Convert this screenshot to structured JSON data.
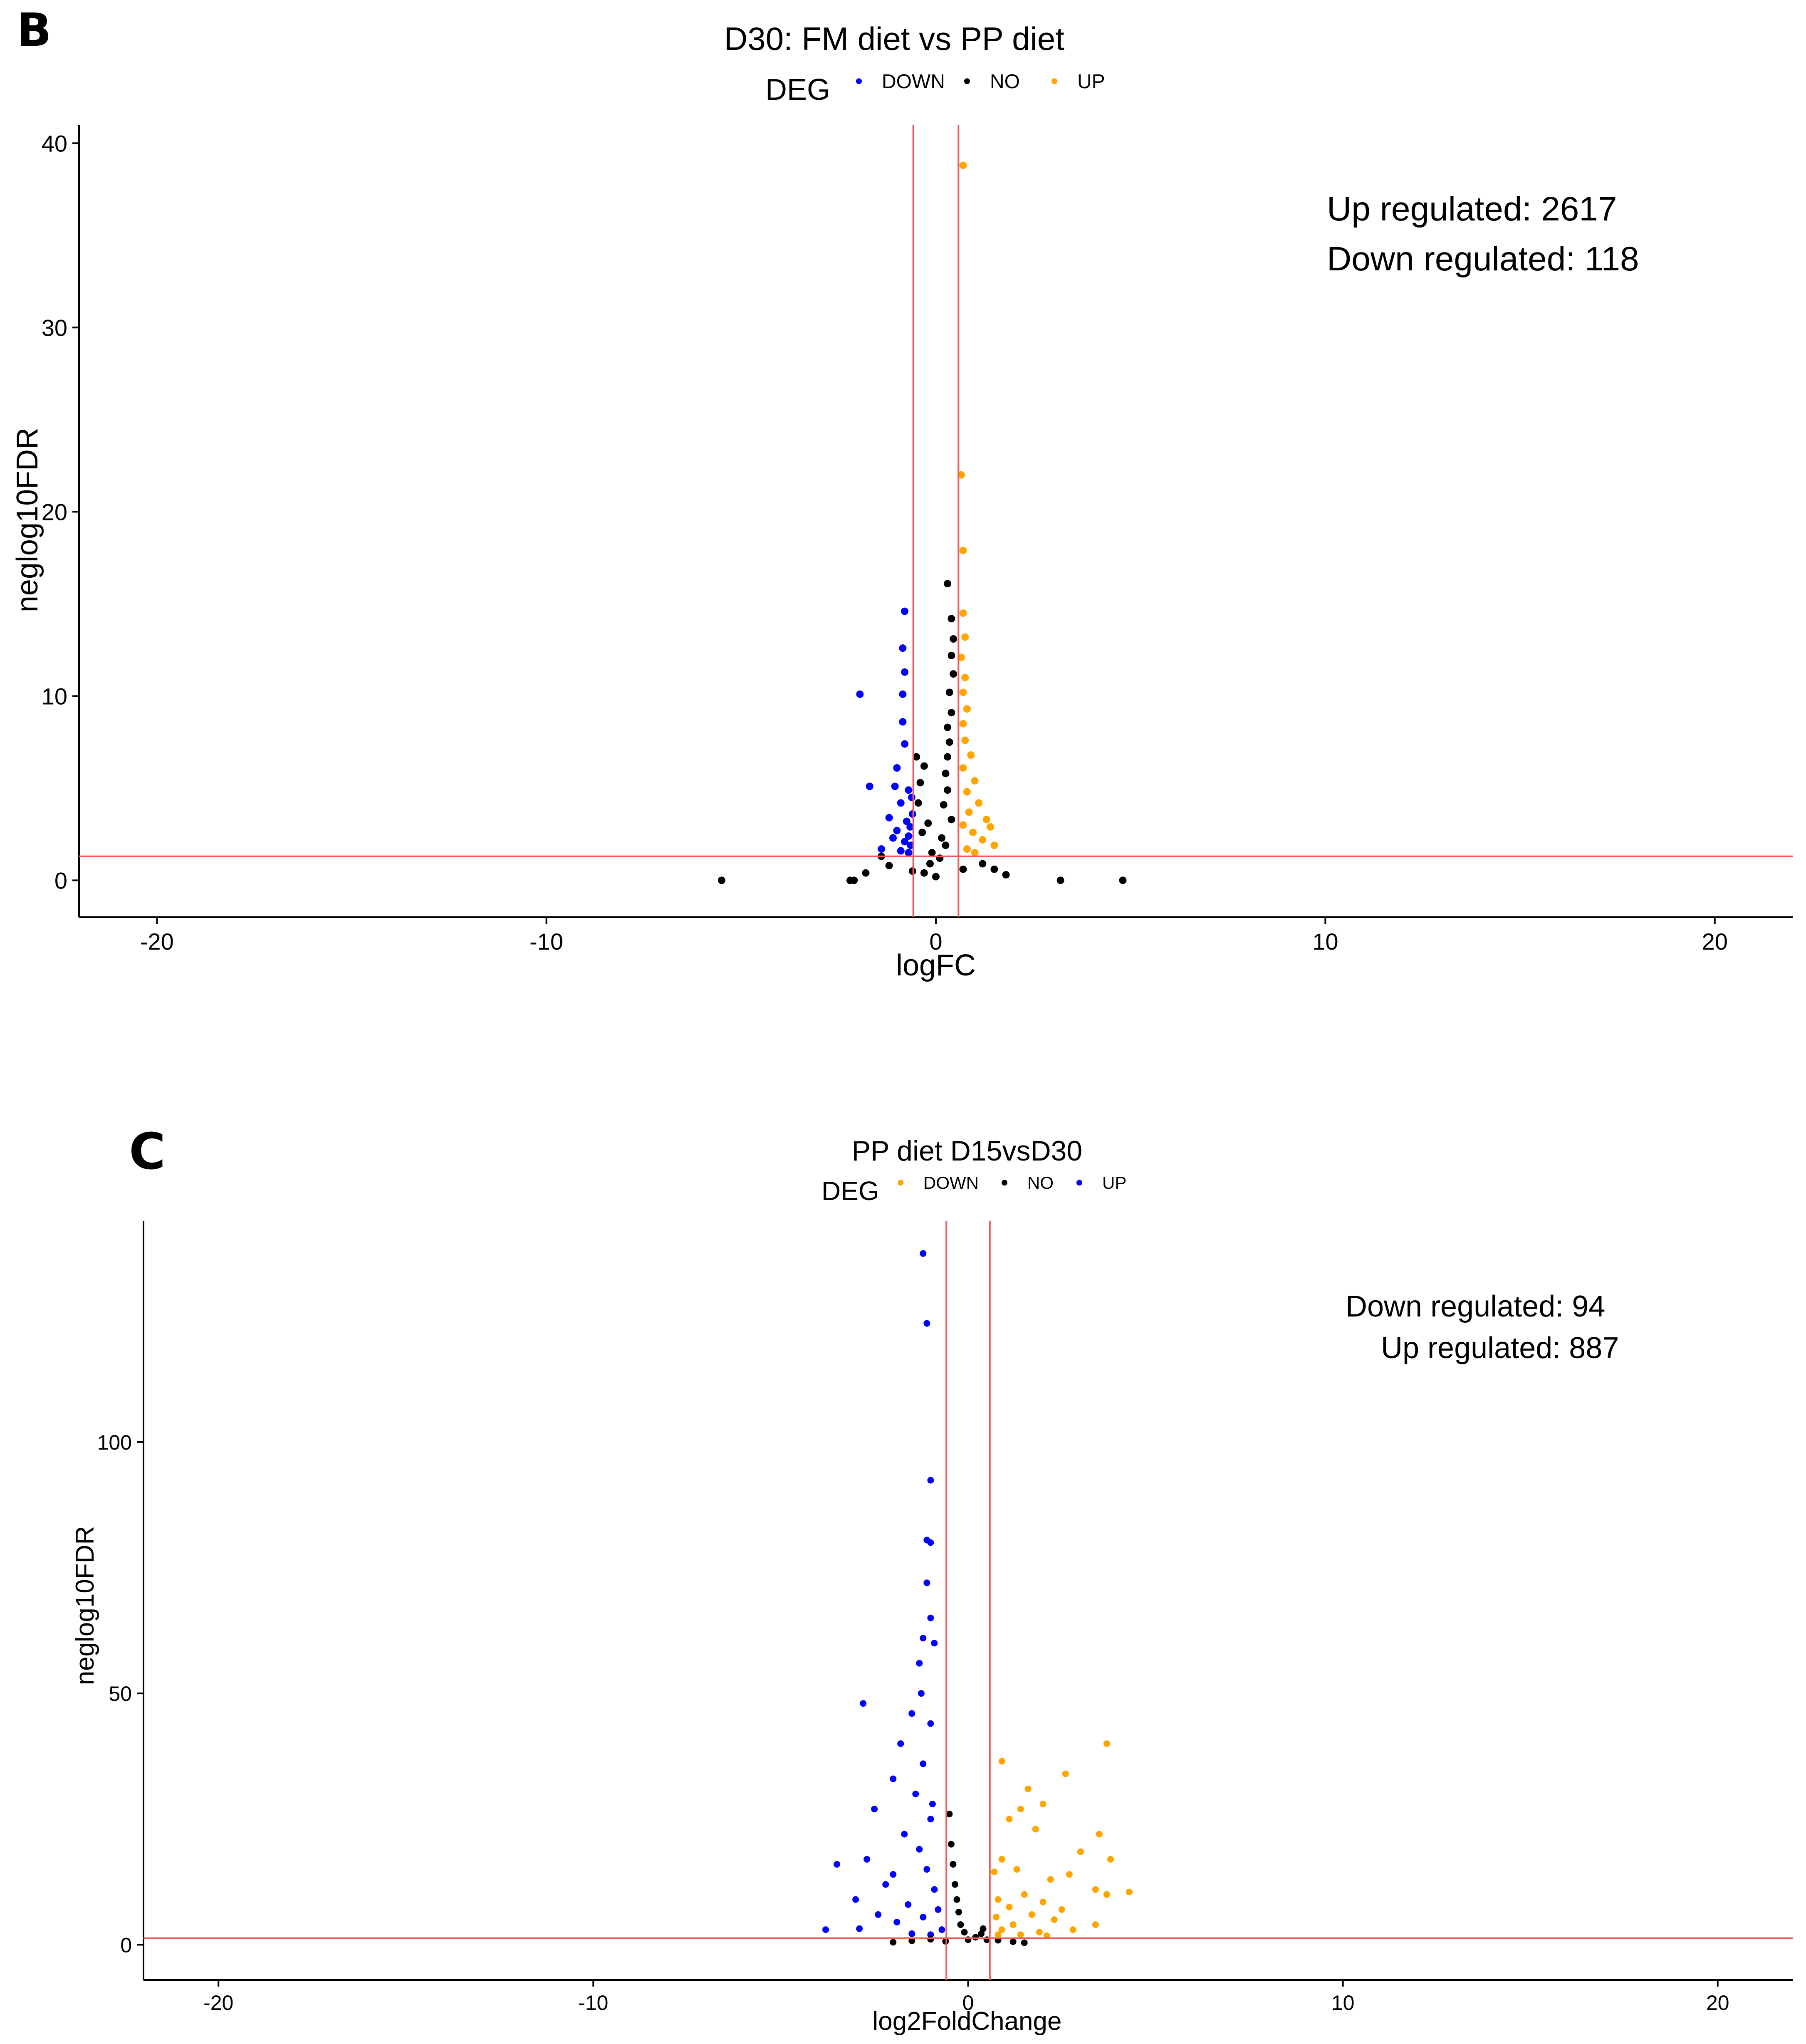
{
  "colors": {
    "blue": "#0000ff",
    "black": "#000000",
    "orange": "#ffa500",
    "refline": "#ee5a5a"
  },
  "chart_data": [
    {
      "type": "scatter",
      "panel_label": "B",
      "title": "D30:  FM diet vs PP diet",
      "xlabel": "logFC",
      "ylabel": "neglog10FDR",
      "xlim": [
        -22,
        22
      ],
      "ylim": [
        -2,
        41
      ],
      "xticks": [
        -20,
        -10,
        0,
        10,
        20
      ],
      "yticks": [
        0,
        10,
        20,
        30,
        40
      ],
      "grid": false,
      "legend": {
        "title": "DEG",
        "position": "top",
        "entries": [
          {
            "label": "DOWN",
            "color": "#0000ff"
          },
          {
            "label": "NO",
            "color": "#000000"
          },
          {
            "label": "UP",
            "color": "#ffa500"
          }
        ]
      },
      "reference_lines": {
        "vertical": [
          -0.58,
          0.58
        ],
        "horizontal": [
          1.3
        ]
      },
      "annotations": [
        "Up regulated: 2617",
        "Down regulated: 118"
      ],
      "series": [
        {
          "name": "DOWN",
          "color": "#0000ff",
          "points": [
            [
              -0.8,
              14.6
            ],
            [
              -0.85,
              12.6
            ],
            [
              -0.8,
              11.3
            ],
            [
              -0.85,
              10.1
            ],
            [
              -1.95,
              10.1
            ],
            [
              -0.85,
              8.6
            ],
            [
              -0.8,
              7.4
            ],
            [
              -1.0,
              6.1
            ],
            [
              -1.7,
              5.1
            ],
            [
              -1.05,
              5.1
            ],
            [
              -0.7,
              4.9
            ],
            [
              -0.9,
              4.2
            ],
            [
              -1.2,
              3.4
            ],
            [
              -0.75,
              3.2
            ],
            [
              -1.0,
              2.7
            ],
            [
              -0.7,
              2.4
            ],
            [
              -0.8,
              2.1
            ],
            [
              -1.4,
              1.7
            ],
            [
              -0.65,
              1.9
            ],
            [
              -0.9,
              1.6
            ],
            [
              -0.7,
              1.5
            ],
            [
              -1.1,
              2.3
            ],
            [
              -0.6,
              3.6
            ],
            [
              -0.62,
              4.5
            ],
            [
              -0.66,
              2.9
            ]
          ]
        },
        {
          "name": "NO",
          "color": "#000000",
          "points": [
            [
              -5.5,
              0.0
            ],
            [
              -2.2,
              0.0
            ],
            [
              -2.1,
              0.0
            ],
            [
              3.2,
              0.0
            ],
            [
              4.8,
              0.0
            ],
            [
              0.3,
              16.1
            ],
            [
              0.4,
              14.2
            ],
            [
              0.45,
              13.1
            ],
            [
              0.4,
              12.2
            ],
            [
              0.45,
              11.2
            ],
            [
              0.35,
              10.2
            ],
            [
              0.4,
              9.1
            ],
            [
              0.3,
              8.3
            ],
            [
              0.35,
              7.5
            ],
            [
              0.3,
              6.7
            ],
            [
              -0.5,
              6.7
            ],
            [
              -0.3,
              6.2
            ],
            [
              -0.4,
              5.3
            ],
            [
              -0.45,
              4.2
            ],
            [
              0.25,
              5.8
            ],
            [
              0.3,
              4.9
            ],
            [
              0.2,
              4.1
            ],
            [
              0.4,
              3.3
            ],
            [
              -0.2,
              3.1
            ],
            [
              -0.35,
              2.6
            ],
            [
              0.15,
              2.3
            ],
            [
              0.25,
              1.9
            ],
            [
              -0.1,
              1.5
            ],
            [
              0.1,
              1.2
            ],
            [
              -0.15,
              0.9
            ],
            [
              -1.4,
              1.3
            ],
            [
              -1.2,
              0.8
            ],
            [
              1.2,
              0.9
            ],
            [
              1.5,
              0.6
            ],
            [
              -1.8,
              0.4
            ],
            [
              1.8,
              0.3
            ],
            [
              -0.6,
              0.5
            ],
            [
              0.7,
              0.6
            ],
            [
              0.0,
              0.2
            ],
            [
              -0.3,
              0.4
            ]
          ]
        },
        {
          "name": "UP",
          "color": "#ffa500",
          "points": [
            [
              0.7,
              38.8
            ],
            [
              0.65,
              22.0
            ],
            [
              0.7,
              17.9
            ],
            [
              0.7,
              14.5
            ],
            [
              0.75,
              13.2
            ],
            [
              0.65,
              12.1
            ],
            [
              0.75,
              11.0
            ],
            [
              0.7,
              10.2
            ],
            [
              0.8,
              9.3
            ],
            [
              0.7,
              8.5
            ],
            [
              0.75,
              7.6
            ],
            [
              0.9,
              6.8
            ],
            [
              0.7,
              6.1
            ],
            [
              1.0,
              5.4
            ],
            [
              0.8,
              4.8
            ],
            [
              1.1,
              4.2
            ],
            [
              0.85,
              3.7
            ],
            [
              1.3,
              3.3
            ],
            [
              1.4,
              2.9
            ],
            [
              0.95,
              2.6
            ],
            [
              1.2,
              2.2
            ],
            [
              1.5,
              1.9
            ],
            [
              0.8,
              1.7
            ],
            [
              1.0,
              1.5
            ],
            [
              0.7,
              3.0
            ]
          ]
        }
      ]
    },
    {
      "type": "scatter",
      "panel_label": "C",
      "title": "PP diet D15vsD30",
      "xlabel": "log2FoldChange",
      "ylabel": "neglog10FDR",
      "xlim": [
        -22,
        22
      ],
      "ylim": [
        -7,
        144
      ],
      "xticks": [
        -20,
        -10,
        0,
        10,
        20
      ],
      "yticks": [
        0,
        50,
        100
      ],
      "grid": false,
      "legend": {
        "title": "DEG",
        "position": "top",
        "entries": [
          {
            "label": "DOWN",
            "color": "#ffa500"
          },
          {
            "label": "NO",
            "color": "#000000"
          },
          {
            "label": "UP",
            "color": "#0000ff"
          }
        ]
      },
      "reference_lines": {
        "vertical": [
          -0.58,
          0.58
        ],
        "horizontal": [
          1.3
        ]
      },
      "annotations": [
        "Down regulated: 94",
        "Up regulated: 887"
      ],
      "series": [
        {
          "name": "UP",
          "color": "#0000ff",
          "points": [
            [
              -1.2,
              137.5
            ],
            [
              -1.1,
              123.6
            ],
            [
              -1.0,
              92.4
            ],
            [
              -1.1,
              80.5
            ],
            [
              -1.0,
              80.0
            ],
            [
              -1.1,
              72.0
            ],
            [
              -1.0,
              65.0
            ],
            [
              -1.2,
              61.0
            ],
            [
              -0.9,
              60.0
            ],
            [
              -1.3,
              56.0
            ],
            [
              -2.8,
              48.0
            ],
            [
              -1.5,
              46.0
            ],
            [
              -1.0,
              44.0
            ],
            [
              -1.8,
              40.0
            ],
            [
              -1.2,
              36.0
            ],
            [
              -2.0,
              33.0
            ],
            [
              -1.4,
              30.0
            ],
            [
              -2.5,
              27.0
            ],
            [
              -1.0,
              25.0
            ],
            [
              -1.7,
              22.0
            ],
            [
              -1.3,
              19.0
            ],
            [
              -3.5,
              16.0
            ],
            [
              -2.7,
              17.0
            ],
            [
              -2.2,
              12.0
            ],
            [
              -1.1,
              15.0
            ],
            [
              -3.0,
              9.0
            ],
            [
              -2.4,
              6.0
            ],
            [
              -3.8,
              3.0
            ],
            [
              -1.6,
              8.0
            ],
            [
              -0.9,
              11.0
            ],
            [
              -1.9,
              4.5
            ],
            [
              -1.2,
              5.5
            ],
            [
              -0.8,
              7.0
            ],
            [
              -2.9,
              3.2
            ],
            [
              -1.5,
              2.2
            ],
            [
              -0.7,
              3.0
            ],
            [
              -1.0,
              2.0
            ],
            [
              -2.0,
              14.0
            ],
            [
              -0.95,
              28.0
            ],
            [
              -1.25,
              50.0
            ]
          ]
        },
        {
          "name": "NO",
          "color": "#000000",
          "points": [
            [
              -0.5,
              26.0
            ],
            [
              -0.45,
              20.0
            ],
            [
              -0.4,
              16.0
            ],
            [
              -0.35,
              12.0
            ],
            [
              -0.3,
              9.0
            ],
            [
              -0.25,
              6.5
            ],
            [
              -0.2,
              4.0
            ],
            [
              -0.1,
              2.5
            ],
            [
              0.0,
              1.0
            ],
            [
              0.2,
              1.5
            ],
            [
              0.35,
              2.2
            ],
            [
              0.4,
              3.2
            ],
            [
              0.5,
              1.0
            ],
            [
              -1.5,
              0.8
            ],
            [
              -2.0,
              0.5
            ],
            [
              1.2,
              0.6
            ],
            [
              1.5,
              0.4
            ],
            [
              -0.6,
              0.7
            ],
            [
              0.8,
              0.9
            ],
            [
              -1.0,
              1.1
            ]
          ]
        },
        {
          "name": "DOWN",
          "color": "#ffa500",
          "points": [
            [
              3.7,
              40.0
            ],
            [
              0.9,
              36.5
            ],
            [
              2.6,
              34.0
            ],
            [
              1.6,
              31.0
            ],
            [
              2.0,
              28.0
            ],
            [
              1.4,
              27.0
            ],
            [
              1.1,
              25.0
            ],
            [
              1.8,
              23.0
            ],
            [
              3.5,
              22.0
            ],
            [
              3.0,
              18.5
            ],
            [
              0.9,
              17.0
            ],
            [
              3.8,
              17.0
            ],
            [
              1.3,
              15.0
            ],
            [
              0.7,
              14.5
            ],
            [
              2.7,
              14.0
            ],
            [
              2.2,
              13.0
            ],
            [
              3.4,
              11.0
            ],
            [
              4.3,
              10.5
            ],
            [
              1.5,
              10.0
            ],
            [
              3.7,
              10.0
            ],
            [
              0.8,
              9.0
            ],
            [
              2.0,
              8.5
            ],
            [
              1.1,
              7.5
            ],
            [
              2.5,
              7.0
            ],
            [
              1.7,
              6.0
            ],
            [
              0.75,
              5.5
            ],
            [
              2.3,
              5.0
            ],
            [
              3.4,
              4.0
            ],
            [
              1.2,
              4.0
            ],
            [
              2.8,
              3.0
            ],
            [
              0.9,
              3.0
            ],
            [
              1.9,
              2.5
            ],
            [
              1.4,
              2.0
            ],
            [
              0.8,
              2.0
            ],
            [
              2.1,
              1.8
            ]
          ]
        }
      ]
    }
  ]
}
